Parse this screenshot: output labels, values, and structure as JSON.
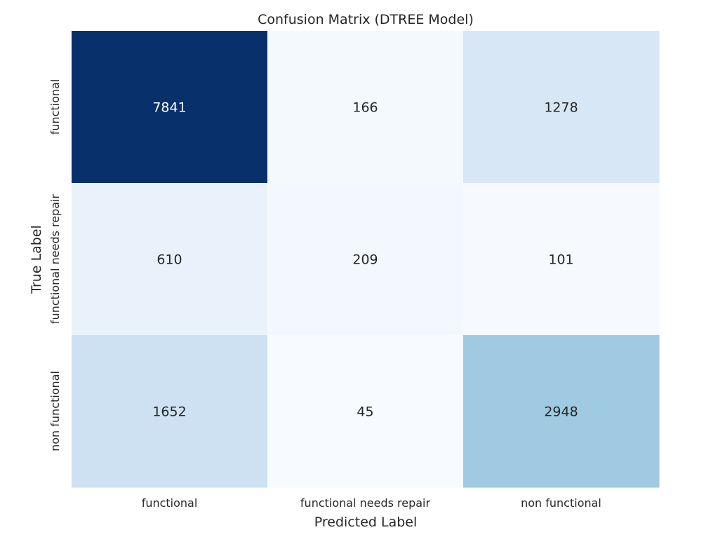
{
  "chart_data": {
    "type": "heatmap",
    "title": "Confusion Matrix (DTREE Model)",
    "xlabel": "Predicted Label",
    "ylabel": "True Label",
    "x_categories": [
      "functional",
      "functional needs repair",
      "non functional"
    ],
    "y_categories": [
      "functional",
      "functional needs repair",
      "non functional"
    ],
    "values": [
      [
        7841,
        166,
        1278
      ],
      [
        610,
        209,
        101
      ],
      [
        1652,
        45,
        2948
      ]
    ],
    "colormap": "Blues",
    "colorbar": false,
    "grid": false
  }
}
